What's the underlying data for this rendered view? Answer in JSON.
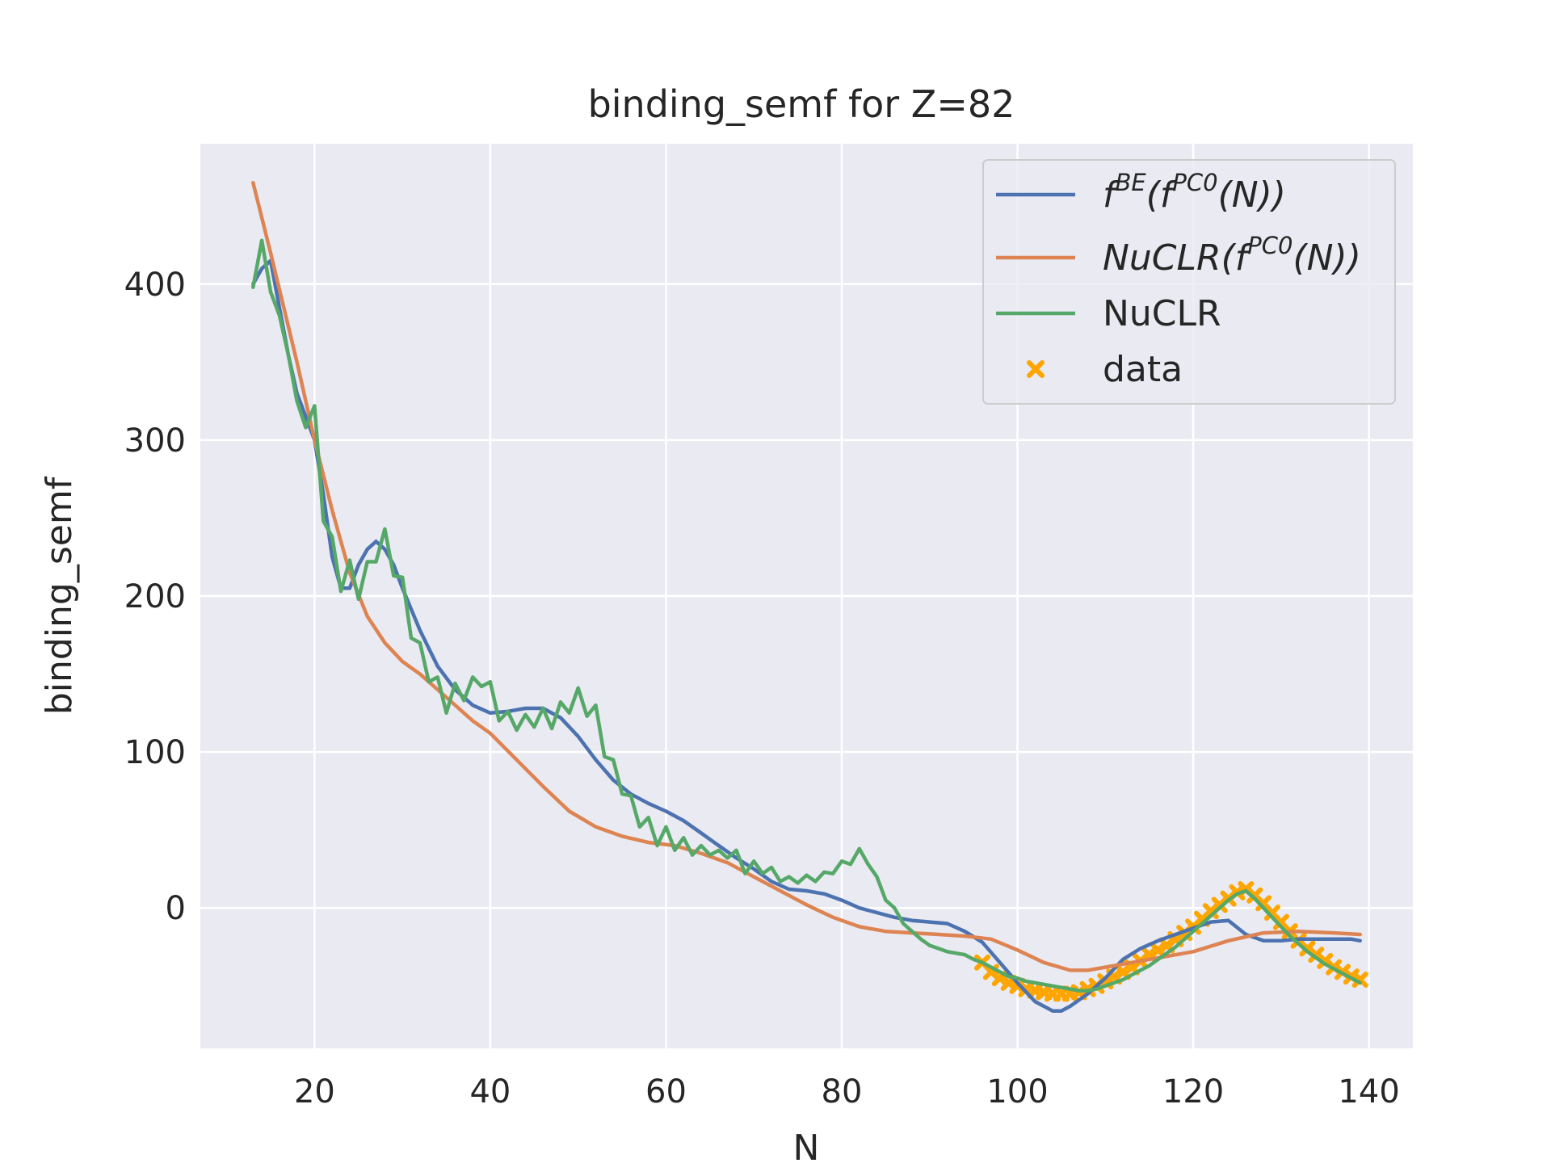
{
  "chart_data": {
    "type": "line",
    "title": "binding_semf for Z=82",
    "xlabel": "N",
    "ylabel": "binding_semf",
    "xlim": [
      7,
      145
    ],
    "ylim": [
      -90,
      490
    ],
    "x_ticks": [
      20,
      40,
      60,
      80,
      100,
      120,
      140
    ],
    "y_ticks": [
      0,
      100,
      200,
      300,
      400
    ],
    "grid": true,
    "legend_position": "top-right",
    "colors": {
      "background": "#eaeaf2",
      "grid": "#ffffff",
      "fbe": "#4c72b0",
      "nuclr_pc": "#dd8452",
      "nuclr": "#55a868",
      "data": "#ffa500"
    },
    "legend": {
      "fbe": {
        "base": "f",
        "sup1": "BE",
        "mid": "(f",
        "sup2": "PC0",
        "tail": "(N))"
      },
      "nuclr_pc": {
        "base": "NuCLR(f",
        "sup": "PC0",
        "tail": "(N))"
      },
      "nuclr": "NuCLR",
      "data": "data"
    },
    "series": [
      {
        "id": "fbe",
        "x": [
          13,
          14,
          15,
          16,
          17,
          18,
          19,
          20,
          21,
          22,
          23,
          24,
          25,
          26,
          27,
          28,
          29,
          30,
          32,
          34,
          36,
          38,
          40,
          42,
          44,
          46,
          48,
          50,
          52,
          54,
          56,
          58,
          60,
          62,
          64,
          66,
          68,
          70,
          72,
          74,
          76,
          78,
          80,
          82,
          84,
          86,
          88,
          90,
          92,
          94,
          96,
          98,
          100,
          102,
          104,
          105,
          106,
          108,
          110,
          112,
          114,
          116,
          118,
          120,
          122,
          124,
          126,
          128,
          130,
          132,
          134,
          136,
          138,
          139
        ],
        "y": [
          400,
          410,
          415,
          385,
          355,
          330,
          315,
          300,
          265,
          225,
          205,
          205,
          220,
          230,
          235,
          230,
          220,
          205,
          178,
          155,
          140,
          130,
          125,
          126,
          128,
          128,
          122,
          110,
          95,
          82,
          73,
          67,
          62,
          56,
          48,
          40,
          32,
          25,
          17,
          12,
          11,
          9,
          5,
          0,
          -3,
          -6,
          -8,
          -9,
          -10,
          -15,
          -22,
          -35,
          -48,
          -60,
          -66,
          -66,
          -63,
          -55,
          -45,
          -33,
          -26,
          -21,
          -17,
          -13,
          -9,
          -8,
          -17,
          -21,
          -21,
          -20,
          -20,
          -20,
          -20,
          -21
        ]
      },
      {
        "id": "nuclr_pc",
        "x": [
          13,
          15,
          18,
          20,
          22,
          24,
          26,
          28,
          30,
          32,
          35,
          38,
          40,
          43,
          46,
          49,
          52,
          55,
          58,
          61,
          64,
          67,
          70,
          73,
          76,
          79,
          82,
          85,
          88,
          91,
          94,
          97,
          100,
          103,
          106,
          108,
          110,
          113,
          116,
          120,
          124,
          128,
          132,
          136,
          139
        ],
        "y": [
          465,
          420,
          350,
          300,
          255,
          215,
          187,
          170,
          158,
          150,
          135,
          120,
          112,
          95,
          78,
          62,
          52,
          46,
          42,
          40,
          35,
          29,
          20,
          11,
          2,
          -6,
          -12,
          -15,
          -16,
          -17,
          -18,
          -20,
          -27,
          -35,
          -40,
          -40,
          -38,
          -35,
          -32,
          -28,
          -21,
          -16,
          -15,
          -16,
          -17
        ]
      },
      {
        "id": "nuclr",
        "x": [
          13,
          14,
          15,
          16,
          17,
          18,
          19,
          20,
          21,
          22,
          23,
          24,
          25,
          26,
          27,
          28,
          29,
          30,
          31,
          32,
          33,
          34,
          35,
          36,
          37,
          38,
          39,
          40,
          41,
          42,
          43,
          44,
          45,
          46,
          47,
          48,
          49,
          50,
          51,
          52,
          53,
          54,
          55,
          56,
          57,
          58,
          59,
          60,
          61,
          62,
          63,
          64,
          65,
          66,
          67,
          68,
          69,
          70,
          71,
          72,
          73,
          74,
          75,
          76,
          77,
          78,
          79,
          80,
          81,
          82,
          83,
          84,
          85,
          86,
          87,
          88,
          89,
          90,
          91,
          92,
          93,
          94,
          95,
          96,
          97,
          98,
          99,
          100,
          101,
          102,
          103,
          104,
          105,
          106,
          107,
          108,
          109,
          110,
          111,
          112,
          113,
          114,
          115,
          116,
          117,
          118,
          119,
          120,
          121,
          122,
          123,
          124,
          125,
          126,
          127,
          128,
          129,
          130,
          131,
          132,
          133,
          134,
          135,
          136,
          137,
          138,
          139
        ],
        "y": [
          398,
          428,
          395,
          380,
          355,
          325,
          308,
          322,
          248,
          238,
          203,
          223,
          198,
          222,
          222,
          243,
          213,
          212,
          173,
          170,
          145,
          148,
          125,
          144,
          133,
          148,
          142,
          145,
          120,
          126,
          114,
          124,
          116,
          128,
          115,
          132,
          125,
          141,
          123,
          130,
          97,
          95,
          73,
          72,
          52,
          58,
          40,
          52,
          37,
          45,
          34,
          40,
          34,
          37,
          32,
          37,
          22,
          30,
          22,
          26,
          17,
          20,
          16,
          21,
          17,
          23,
          22,
          30,
          28,
          38,
          28,
          20,
          5,
          0,
          -10,
          -15,
          -20,
          -24,
          -26,
          -28,
          -29,
          -30,
          -33,
          -35,
          -38,
          -41,
          -44,
          -45,
          -47,
          -48,
          -49,
          -50,
          -51,
          -52,
          -53,
          -53,
          -52,
          -50,
          -48,
          -46,
          -43,
          -40,
          -37,
          -33,
          -29,
          -25,
          -20,
          -15,
          -10,
          -5,
          0,
          5,
          9,
          11,
          6,
          0,
          -6,
          -12,
          -18,
          -23,
          -28,
          -32,
          -36,
          -39,
          -42,
          -45,
          -48
        ]
      },
      {
        "id": "data",
        "x": [
          96,
          97,
          98,
          99,
          100,
          101,
          102,
          103,
          104,
          105,
          106,
          107,
          108,
          109,
          110,
          111,
          112,
          113,
          114,
          115,
          116,
          117,
          118,
          119,
          120,
          121,
          122,
          123,
          124,
          125,
          126,
          127,
          128,
          129,
          130,
          131,
          132,
          133,
          134,
          135,
          136,
          137,
          138,
          139
        ],
        "y": [
          -35,
          -41,
          -45,
          -48,
          -50,
          -52,
          -53,
          -54,
          -55,
          -55,
          -55,
          -54,
          -52,
          -50,
          -47,
          -44,
          -41,
          -38,
          -34,
          -30,
          -27,
          -24,
          -20,
          -16,
          -12,
          -7,
          -2,
          2,
          6,
          10,
          12,
          8,
          3,
          -3,
          -9,
          -15,
          -21,
          -26,
          -30,
          -34,
          -38,
          -41,
          -44,
          -46
        ]
      }
    ]
  }
}
